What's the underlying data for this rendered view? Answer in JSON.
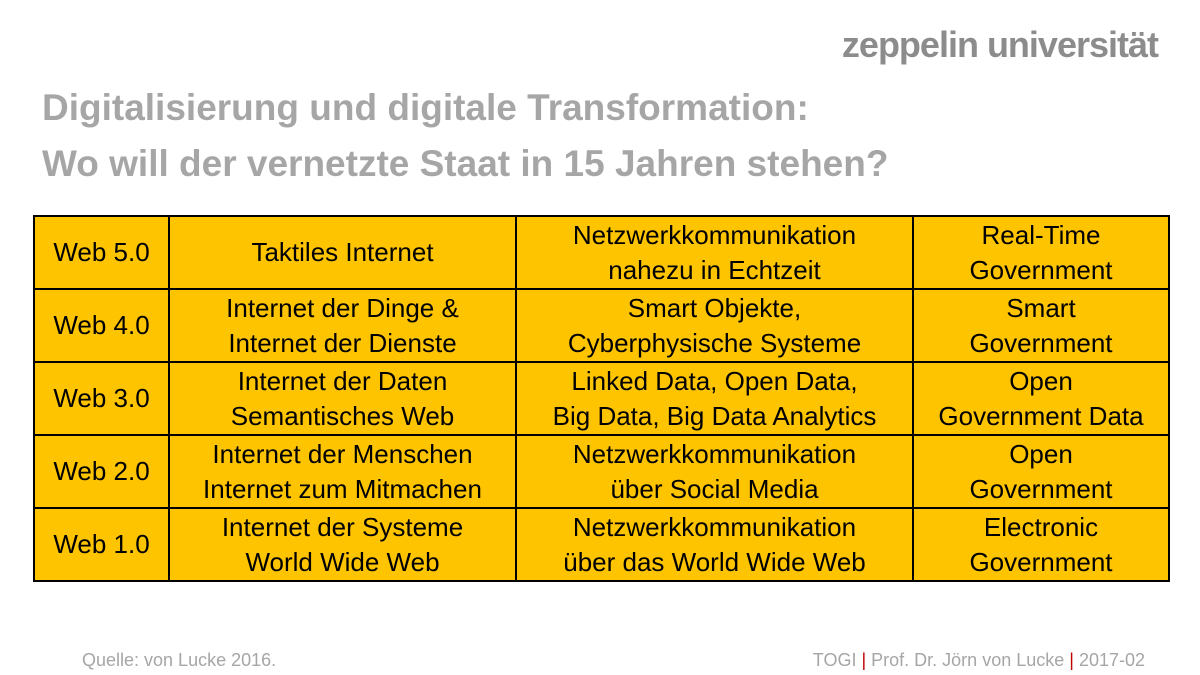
{
  "header": {
    "logo": "zeppelin universität",
    "title": [
      "Digitalisierung und digitale Transformation:",
      "Wo will der vernetzte Staat in 15 Jahren stehen?"
    ]
  },
  "table": {
    "rows": [
      [
        [
          "Web 5.0"
        ],
        [
          "Taktiles Internet"
        ],
        [
          "Netzwerkkommunikation",
          "nahezu in Echtzeit"
        ],
        [
          "Real-Time",
          "Government"
        ]
      ],
      [
        [
          "Web 4.0"
        ],
        [
          "Internet der Dinge &",
          "Internet der Dienste"
        ],
        [
          "Smart Objekte,",
          "Cyberphysische Systeme"
        ],
        [
          "Smart",
          "Government"
        ]
      ],
      [
        [
          "Web 3.0"
        ],
        [
          "Internet der Daten",
          "Semantisches Web"
        ],
        [
          "Linked Data, Open Data,",
          "Big Data, Big Data Analytics"
        ],
        [
          "Open",
          "Government Data"
        ]
      ],
      [
        [
          "Web 2.0"
        ],
        [
          "Internet der Menschen",
          "Internet zum Mitmachen"
        ],
        [
          "Netzwerkkommunikation",
          "über Social Media"
        ],
        [
          "Open",
          "Government"
        ]
      ],
      [
        [
          "Web 1.0"
        ],
        [
          "Internet der Systeme",
          "World Wide Web"
        ],
        [
          "Netzwerkkommunikation",
          "über das World Wide Web"
        ],
        [
          "Electronic",
          "Government"
        ]
      ]
    ]
  },
  "footer": {
    "source": "Quelle: von Lucke 2016.",
    "credits": [
      "TOGI",
      "Prof. Dr. Jörn von Lucke",
      "2017-02"
    ],
    "separator": "|"
  }
}
